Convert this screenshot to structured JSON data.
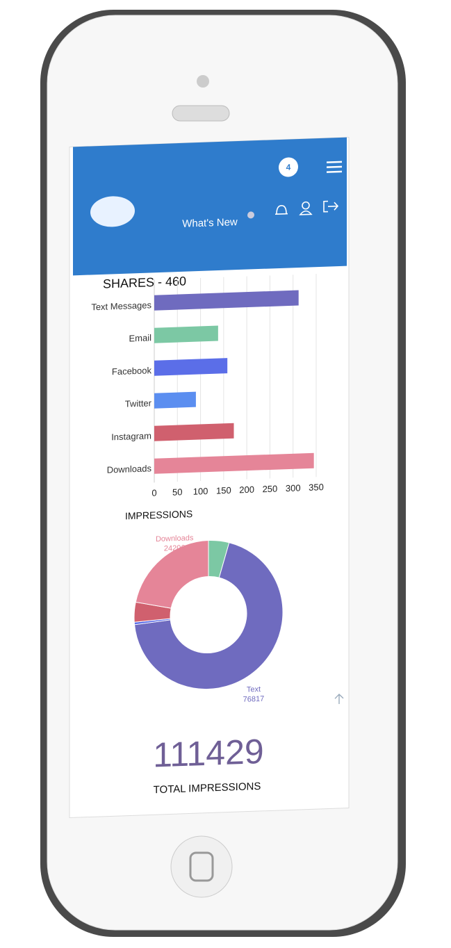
{
  "header": {
    "notification_count": 4,
    "menu_item": "What's New"
  },
  "chart_data": [
    {
      "type": "bar",
      "orientation": "horizontal",
      "title": "SHARES - 460",
      "categories": [
        "Text Messages",
        "Email",
        "Facebook",
        "Twitter",
        "Instagram",
        "Downloads"
      ],
      "values": [
        312,
        138,
        158,
        90,
        172,
        345
      ],
      "colors": [
        "#6f6bbf",
        "#7cc8a4",
        "#5b6ee8",
        "#5b8ef0",
        "#d0606e",
        "#e58598"
      ],
      "xlim": [
        0,
        350
      ],
      "xticks": [
        0,
        50,
        100,
        150,
        200,
        250,
        300,
        350
      ],
      "grid": true
    },
    {
      "type": "donut",
      "title": "IMPRESSIONS",
      "categories": [
        null,
        "Text",
        null,
        null,
        "Downloads"
      ],
      "values": [
        5000,
        76817,
        600,
        4806,
        24206
      ],
      "colors": [
        "#7cc8a4",
        "#6f6bbf",
        "#5b6ee8",
        "#d0606e",
        "#e58598"
      ]
    }
  ],
  "total": {
    "value": 111429,
    "label": "TOTAL IMPRESSIONS"
  }
}
